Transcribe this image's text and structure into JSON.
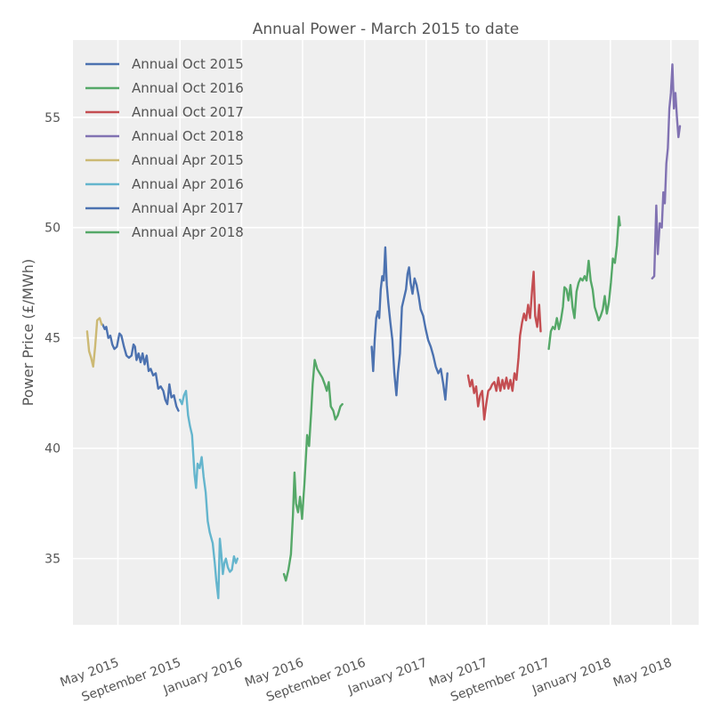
{
  "chart_data": {
    "type": "line",
    "title": "Annual Power - March 2015 to date",
    "xlabel": "",
    "ylabel": "Power Price (£/MWh)",
    "x_type": "date",
    "xlim": [
      "2015-02-01",
      "2018-06-25"
    ],
    "ylim": [
      32,
      58.5
    ],
    "yticks": [
      35,
      40,
      45,
      50,
      55
    ],
    "xticks": [
      {
        "date": "2015-05-01",
        "label": "May 2015"
      },
      {
        "date": "2015-09-01",
        "label": "September 2015"
      },
      {
        "date": "2016-01-01",
        "label": "January 2016"
      },
      {
        "date": "2016-05-01",
        "label": "May 2016"
      },
      {
        "date": "2016-09-01",
        "label": "September 2016"
      },
      {
        "date": "2017-01-01",
        "label": "January 2017"
      },
      {
        "date": "2017-05-01",
        "label": "May 2017"
      },
      {
        "date": "2017-09-01",
        "label": "September 2017"
      },
      {
        "date": "2018-01-01",
        "label": "January 2018"
      },
      {
        "date": "2018-05-01",
        "label": "May 2018"
      }
    ],
    "grid": true,
    "legend_position": "top-left",
    "series": [
      {
        "name": "Annual Oct 2015",
        "color": "#4c72b0",
        "points": [
          [
            "2015-04-01",
            45.6
          ],
          [
            "2015-04-05",
            45.4
          ],
          [
            "2015-04-08",
            45.5
          ],
          [
            "2015-04-12",
            45.0
          ],
          [
            "2015-04-16",
            45.1
          ],
          [
            "2015-04-20",
            44.7
          ],
          [
            "2015-04-24",
            44.5
          ],
          [
            "2015-04-29",
            44.6
          ],
          [
            "2015-05-04",
            45.2
          ],
          [
            "2015-05-08",
            45.1
          ],
          [
            "2015-05-13",
            44.6
          ],
          [
            "2015-05-18",
            44.2
          ],
          [
            "2015-05-23",
            44.1
          ],
          [
            "2015-05-28",
            44.2
          ],
          [
            "2015-06-01",
            44.7
          ],
          [
            "2015-06-04",
            44.6
          ],
          [
            "2015-06-07",
            44.0
          ],
          [
            "2015-06-11",
            44.3
          ],
          [
            "2015-06-15",
            43.9
          ],
          [
            "2015-06-19",
            44.3
          ],
          [
            "2015-06-23",
            43.8
          ],
          [
            "2015-06-27",
            44.2
          ],
          [
            "2015-07-01",
            43.5
          ],
          [
            "2015-07-05",
            43.6
          ],
          [
            "2015-07-10",
            43.3
          ],
          [
            "2015-07-15",
            43.4
          ],
          [
            "2015-07-20",
            42.7
          ],
          [
            "2015-07-25",
            42.8
          ],
          [
            "2015-07-30",
            42.6
          ],
          [
            "2015-08-03",
            42.2
          ],
          [
            "2015-08-07",
            42.0
          ],
          [
            "2015-08-11",
            42.9
          ],
          [
            "2015-08-15",
            42.3
          ],
          [
            "2015-08-20",
            42.4
          ],
          [
            "2015-08-25",
            41.9
          ],
          [
            "2015-08-29",
            41.7
          ]
        ]
      },
      {
        "name": "Annual Oct 2016",
        "color": "#55a868",
        "points": [
          [
            "2016-03-25",
            34.3
          ],
          [
            "2016-03-29",
            34.0
          ],
          [
            "2016-04-03",
            34.5
          ],
          [
            "2016-04-08",
            35.2
          ],
          [
            "2016-04-12",
            37.0
          ],
          [
            "2016-04-15",
            38.9
          ],
          [
            "2016-04-18",
            37.5
          ],
          [
            "2016-04-22",
            37.1
          ],
          [
            "2016-04-26",
            37.8
          ],
          [
            "2016-04-30",
            36.8
          ],
          [
            "2016-05-05",
            38.5
          ],
          [
            "2016-05-10",
            40.6
          ],
          [
            "2016-05-14",
            40.1
          ],
          [
            "2016-05-18",
            41.6
          ],
          [
            "2016-05-21",
            42.9
          ],
          [
            "2016-05-25",
            44.0
          ],
          [
            "2016-05-30",
            43.6
          ],
          [
            "2016-06-04",
            43.4
          ],
          [
            "2016-06-09",
            43.2
          ],
          [
            "2016-06-14",
            42.9
          ],
          [
            "2016-06-18",
            42.6
          ],
          [
            "2016-06-22",
            43.0
          ],
          [
            "2016-06-26",
            41.9
          ],
          [
            "2016-07-01",
            41.7
          ],
          [
            "2016-07-05",
            41.3
          ],
          [
            "2016-07-10",
            41.5
          ],
          [
            "2016-07-15",
            41.9
          ],
          [
            "2016-07-19",
            42.0
          ]
        ]
      },
      {
        "name": "Annual Oct 2017",
        "color": "#c44e52",
        "points": [
          [
            "2017-03-25",
            43.3
          ],
          [
            "2017-03-29",
            42.8
          ],
          [
            "2017-04-02",
            43.1
          ],
          [
            "2017-04-06",
            42.5
          ],
          [
            "2017-04-10",
            42.8
          ],
          [
            "2017-04-14",
            41.9
          ],
          [
            "2017-04-18",
            42.4
          ],
          [
            "2017-04-22",
            42.6
          ],
          [
            "2017-04-26",
            41.3
          ],
          [
            "2017-04-30",
            42.0
          ],
          [
            "2017-05-04",
            42.6
          ],
          [
            "2017-05-08",
            42.7
          ],
          [
            "2017-05-12",
            42.9
          ],
          [
            "2017-05-16",
            43.0
          ],
          [
            "2017-05-20",
            42.6
          ],
          [
            "2017-05-24",
            43.2
          ],
          [
            "2017-05-28",
            42.6
          ],
          [
            "2017-06-01",
            43.1
          ],
          [
            "2017-06-05",
            42.7
          ],
          [
            "2017-06-09",
            43.2
          ],
          [
            "2017-06-13",
            42.7
          ],
          [
            "2017-06-17",
            43.1
          ],
          [
            "2017-06-21",
            42.6
          ],
          [
            "2017-06-25",
            43.4
          ],
          [
            "2017-06-29",
            43.1
          ],
          [
            "2017-07-03",
            44.1
          ],
          [
            "2017-07-06",
            45.1
          ],
          [
            "2017-07-10",
            45.7
          ],
          [
            "2017-07-14",
            46.1
          ],
          [
            "2017-07-18",
            45.8
          ],
          [
            "2017-07-22",
            46.5
          ],
          [
            "2017-07-26",
            45.9
          ],
          [
            "2017-07-30",
            47.2
          ],
          [
            "2017-08-02",
            48.0
          ],
          [
            "2017-08-05",
            46.0
          ],
          [
            "2017-08-09",
            45.5
          ],
          [
            "2017-08-13",
            46.5
          ],
          [
            "2017-08-16",
            45.3
          ]
        ]
      },
      {
        "name": "Annual Oct 2018",
        "color": "#8172b2",
        "points": [
          [
            "2018-03-25",
            47.7
          ],
          [
            "2018-03-29",
            47.8
          ],
          [
            "2018-04-02",
            51.0
          ],
          [
            "2018-04-05",
            48.8
          ],
          [
            "2018-04-09",
            50.2
          ],
          [
            "2018-04-13",
            50.0
          ],
          [
            "2018-04-16",
            51.6
          ],
          [
            "2018-04-19",
            51.1
          ],
          [
            "2018-04-22",
            52.9
          ],
          [
            "2018-04-25",
            53.6
          ],
          [
            "2018-04-28",
            55.4
          ],
          [
            "2018-05-01",
            56.1
          ],
          [
            "2018-05-04",
            57.4
          ],
          [
            "2018-05-07",
            55.4
          ],
          [
            "2018-05-10",
            56.1
          ],
          [
            "2018-05-13",
            55.0
          ],
          [
            "2018-05-16",
            54.1
          ],
          [
            "2018-05-19",
            54.6
          ]
        ]
      },
      {
        "name": "Annual Apr 2015",
        "color": "#ccb974",
        "points": [
          [
            "2015-03-01",
            45.3
          ],
          [
            "2015-03-05",
            44.4
          ],
          [
            "2015-03-09",
            44.1
          ],
          [
            "2015-03-13",
            43.7
          ],
          [
            "2015-03-17",
            44.6
          ],
          [
            "2015-03-21",
            45.8
          ],
          [
            "2015-03-26",
            45.9
          ],
          [
            "2015-03-30",
            45.6
          ]
        ]
      },
      {
        "name": "Annual Apr 2016",
        "color": "#64b5cd",
        "points": [
          [
            "2015-09-01",
            42.2
          ],
          [
            "2015-09-05",
            42.0
          ],
          [
            "2015-09-09",
            42.4
          ],
          [
            "2015-09-13",
            42.6
          ],
          [
            "2015-09-17",
            41.5
          ],
          [
            "2015-09-21",
            41.0
          ],
          [
            "2015-09-25",
            40.6
          ],
          [
            "2015-09-30",
            38.8
          ],
          [
            "2015-10-03",
            38.2
          ],
          [
            "2015-10-06",
            39.3
          ],
          [
            "2015-10-10",
            39.1
          ],
          [
            "2015-10-14",
            39.6
          ],
          [
            "2015-10-18",
            38.7
          ],
          [
            "2015-10-22",
            38.0
          ],
          [
            "2015-10-26",
            36.7
          ],
          [
            "2015-10-30",
            36.2
          ],
          [
            "2015-11-05",
            35.7
          ],
          [
            "2015-11-09",
            34.8
          ],
          [
            "2015-11-12",
            34.0
          ],
          [
            "2015-11-16",
            33.2
          ],
          [
            "2015-11-19",
            35.9
          ],
          [
            "2015-11-22",
            35.2
          ],
          [
            "2015-11-25",
            34.3
          ],
          [
            "2015-11-28",
            34.8
          ],
          [
            "2015-12-01",
            35.0
          ],
          [
            "2015-12-05",
            34.6
          ],
          [
            "2015-12-09",
            34.4
          ],
          [
            "2015-12-13",
            34.5
          ],
          [
            "2015-12-17",
            35.1
          ],
          [
            "2015-12-21",
            34.8
          ],
          [
            "2015-12-24",
            35.0
          ]
        ]
      },
      {
        "name": "Annual Apr 2017",
        "color": "#4c72b0",
        "points": [
          [
            "2016-09-15",
            44.6
          ],
          [
            "2016-09-18",
            43.5
          ],
          [
            "2016-09-21",
            44.9
          ],
          [
            "2016-09-24",
            45.9
          ],
          [
            "2016-09-27",
            46.2
          ],
          [
            "2016-09-30",
            45.9
          ],
          [
            "2016-10-03",
            47.2
          ],
          [
            "2016-10-06",
            47.8
          ],
          [
            "2016-10-09",
            47.6
          ],
          [
            "2016-10-12",
            49.1
          ],
          [
            "2016-10-15",
            47.4
          ],
          [
            "2016-10-18",
            46.6
          ],
          [
            "2016-10-22",
            45.7
          ],
          [
            "2016-10-26",
            44.9
          ],
          [
            "2016-10-30",
            43.4
          ],
          [
            "2016-11-03",
            42.4
          ],
          [
            "2016-11-06",
            43.4
          ],
          [
            "2016-11-10",
            44.3
          ],
          [
            "2016-11-14",
            46.4
          ],
          [
            "2016-11-18",
            46.8
          ],
          [
            "2016-11-22",
            47.2
          ],
          [
            "2016-11-25",
            47.9
          ],
          [
            "2016-11-28",
            48.2
          ],
          [
            "2016-12-01",
            47.5
          ],
          [
            "2016-12-05",
            47.0
          ],
          [
            "2016-12-09",
            47.7
          ],
          [
            "2016-12-13",
            47.4
          ],
          [
            "2016-12-17",
            46.9
          ],
          [
            "2016-12-21",
            46.3
          ],
          [
            "2016-12-26",
            46.0
          ],
          [
            "2016-12-31",
            45.4
          ],
          [
            "2017-01-05",
            44.9
          ],
          [
            "2017-01-10",
            44.6
          ],
          [
            "2017-01-15",
            44.2
          ],
          [
            "2017-01-20",
            43.7
          ],
          [
            "2017-01-25",
            43.4
          ],
          [
            "2017-01-30",
            43.6
          ],
          [
            "2017-02-04",
            42.9
          ],
          [
            "2017-02-08",
            42.2
          ],
          [
            "2017-02-12",
            43.4
          ]
        ]
      },
      {
        "name": "Annual Apr 2018",
        "color": "#55a868",
        "points": [
          [
            "2017-09-01",
            44.5
          ],
          [
            "2017-09-05",
            45.3
          ],
          [
            "2017-09-09",
            45.5
          ],
          [
            "2017-09-13",
            45.4
          ],
          [
            "2017-09-17",
            45.9
          ],
          [
            "2017-09-21",
            45.4
          ],
          [
            "2017-09-25",
            45.8
          ],
          [
            "2017-09-29",
            46.4
          ],
          [
            "2017-10-02",
            47.3
          ],
          [
            "2017-10-06",
            47.2
          ],
          [
            "2017-10-10",
            46.7
          ],
          [
            "2017-10-14",
            47.4
          ],
          [
            "2017-10-18",
            46.4
          ],
          [
            "2017-10-22",
            45.9
          ],
          [
            "2017-10-26",
            47.1
          ],
          [
            "2017-10-30",
            47.5
          ],
          [
            "2017-11-03",
            47.7
          ],
          [
            "2017-11-07",
            47.6
          ],
          [
            "2017-11-11",
            47.8
          ],
          [
            "2017-11-15",
            47.6
          ],
          [
            "2017-11-19",
            48.5
          ],
          [
            "2017-11-23",
            47.6
          ],
          [
            "2017-11-27",
            47.2
          ],
          [
            "2017-12-01",
            46.4
          ],
          [
            "2017-12-05",
            46.1
          ],
          [
            "2017-12-09",
            45.8
          ],
          [
            "2017-12-13",
            46.0
          ],
          [
            "2017-12-17",
            46.3
          ],
          [
            "2017-12-21",
            46.9
          ],
          [
            "2017-12-25",
            46.1
          ],
          [
            "2017-12-29",
            46.6
          ],
          [
            "2018-01-02",
            47.5
          ],
          [
            "2018-01-06",
            48.6
          ],
          [
            "2018-01-10",
            48.4
          ],
          [
            "2018-01-14",
            49.2
          ],
          [
            "2018-01-18",
            50.5
          ],
          [
            "2018-01-20",
            50.1
          ]
        ]
      }
    ]
  }
}
